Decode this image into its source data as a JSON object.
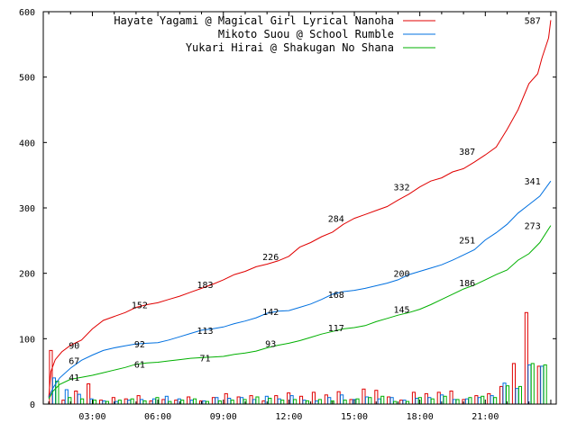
{
  "chart_data": {
    "type": "line",
    "title": "",
    "xlabel": "",
    "ylabel": "",
    "grid": false,
    "legend_position": "top-right",
    "ylim": [
      0,
      600
    ],
    "xlim_hours": [
      0.75,
      24.25
    ],
    "y_ticks": [
      "0",
      "100",
      "200",
      "300",
      "400",
      "500",
      "600"
    ],
    "x_ticks": [
      {
        "hour": 3,
        "label": "03:00"
      },
      {
        "hour": 6,
        "label": "06:00"
      },
      {
        "hour": 9,
        "label": "09:00"
      },
      {
        "hour": 12,
        "label": "12:00"
      },
      {
        "hour": 15,
        "label": "15:00"
      },
      {
        "hour": 18,
        "label": "18:00"
      },
      {
        "hour": 21,
        "label": "21:00"
      }
    ],
    "series": [
      {
        "name": "Hayate Yagami @ Magical Girl Lyrical Nanoha",
        "color": "#e00000",
        "cumulative": [
          [
            1.0,
            10
          ],
          [
            1.1,
            50
          ],
          [
            1.3,
            68
          ],
          [
            1.6,
            80
          ],
          [
            2.0,
            90
          ],
          [
            2.5,
            98
          ],
          [
            3.0,
            115
          ],
          [
            3.5,
            128
          ],
          [
            4.0,
            134
          ],
          [
            4.5,
            140
          ],
          [
            5.0,
            148
          ],
          [
            5.5,
            152
          ],
          [
            6.0,
            155
          ],
          [
            6.5,
            160
          ],
          [
            7.0,
            165
          ],
          [
            7.5,
            171
          ],
          [
            8.0,
            177
          ],
          [
            8.5,
            183
          ],
          [
            9.0,
            190
          ],
          [
            9.5,
            198
          ],
          [
            10.0,
            203
          ],
          [
            10.5,
            210
          ],
          [
            11.0,
            214
          ],
          [
            11.5,
            219
          ],
          [
            12.0,
            226
          ],
          [
            12.5,
            240
          ],
          [
            13.0,
            247
          ],
          [
            13.5,
            256
          ],
          [
            14.0,
            263
          ],
          [
            14.5,
            275
          ],
          [
            15.0,
            284
          ],
          [
            15.5,
            290
          ],
          [
            16.0,
            296
          ],
          [
            16.5,
            302
          ],
          [
            17.0,
            312
          ],
          [
            17.5,
            321
          ],
          [
            18.0,
            332
          ],
          [
            18.5,
            341
          ],
          [
            19.0,
            346
          ],
          [
            19.5,
            355
          ],
          [
            20.0,
            360
          ],
          [
            20.5,
            370
          ],
          [
            21.0,
            381
          ],
          [
            21.5,
            393
          ],
          [
            22.0,
            420
          ],
          [
            22.5,
            450
          ],
          [
            23.0,
            490
          ],
          [
            23.4,
            505
          ],
          [
            23.6,
            530
          ],
          [
            23.9,
            560
          ],
          [
            24.0,
            587
          ]
        ],
        "labels": [
          {
            "hour": 2.0,
            "value": 90,
            "text": "90"
          },
          {
            "hour": 5.0,
            "value": 152,
            "text": "152"
          },
          {
            "hour": 8.0,
            "value": 183,
            "text": "183"
          },
          {
            "hour": 11.0,
            "value": 226,
            "text": "226"
          },
          {
            "hour": 14.0,
            "value": 284,
            "text": "284"
          },
          {
            "hour": 17.0,
            "value": 332,
            "text": "332"
          },
          {
            "hour": 20.0,
            "value": 387,
            "text": "387"
          },
          {
            "hour": 23.0,
            "value": 587,
            "text": "587"
          }
        ],
        "hourly": [
          82,
          6,
          20,
          31,
          6,
          10,
          8,
          13,
          5,
          7,
          6,
          11,
          5,
          10,
          16,
          11,
          13,
          5,
          13,
          17,
          12,
          18,
          14,
          19,
          7,
          23,
          21,
          11,
          6,
          18,
          16,
          18,
          20,
          7,
          13,
          16,
          27,
          62,
          140,
          58
        ]
      },
      {
        "name": "Mikoto Suou @ School Rumble",
        "color": "#0070e0",
        "cumulative": [
          [
            1.0,
            10
          ],
          [
            1.2,
            25
          ],
          [
            1.5,
            40
          ],
          [
            2.0,
            55
          ],
          [
            2.5,
            67
          ],
          [
            3.0,
            75
          ],
          [
            3.5,
            82
          ],
          [
            4.0,
            86
          ],
          [
            4.5,
            89
          ],
          [
            5.0,
            92
          ],
          [
            5.5,
            93
          ],
          [
            6.0,
            94
          ],
          [
            6.5,
            98
          ],
          [
            7.0,
            103
          ],
          [
            7.5,
            108
          ],
          [
            8.0,
            113
          ],
          [
            8.5,
            115
          ],
          [
            9.0,
            118
          ],
          [
            9.5,
            123
          ],
          [
            10.0,
            127
          ],
          [
            10.5,
            132
          ],
          [
            11.0,
            139
          ],
          [
            11.5,
            142
          ],
          [
            12.0,
            143
          ],
          [
            12.5,
            148
          ],
          [
            13.0,
            153
          ],
          [
            13.5,
            160
          ],
          [
            14.0,
            168
          ],
          [
            14.5,
            172
          ],
          [
            15.0,
            174
          ],
          [
            15.5,
            177
          ],
          [
            16.0,
            181
          ],
          [
            16.5,
            185
          ],
          [
            17.0,
            190
          ],
          [
            17.5,
            198
          ],
          [
            18.0,
            203
          ],
          [
            18.5,
            208
          ],
          [
            19.0,
            213
          ],
          [
            19.5,
            220
          ],
          [
            20.0,
            228
          ],
          [
            20.5,
            236
          ],
          [
            21.0,
            251
          ],
          [
            21.5,
            262
          ],
          [
            22.0,
            275
          ],
          [
            22.5,
            292
          ],
          [
            23.0,
            305
          ],
          [
            23.5,
            318
          ],
          [
            24.0,
            341
          ]
        ],
        "labels": [
          {
            "hour": 2.0,
            "value": 67,
            "text": "67"
          },
          {
            "hour": 5.0,
            "value": 92,
            "text": "92"
          },
          {
            "hour": 8.0,
            "value": 113,
            "text": "113"
          },
          {
            "hour": 11.0,
            "value": 142,
            "text": "142"
          },
          {
            "hour": 14.0,
            "value": 168,
            "text": "168"
          },
          {
            "hour": 17.0,
            "value": 200,
            "text": "200"
          },
          {
            "hour": 20.0,
            "value": 251,
            "text": "251"
          },
          {
            "hour": 23.0,
            "value": 341,
            "text": "341"
          }
        ],
        "hourly": [
          40,
          22,
          15,
          8,
          5,
          4,
          6,
          7,
          8,
          12,
          8,
          6,
          5,
          10,
          9,
          10,
          7,
          12,
          8,
          13,
          6,
          5,
          10,
          14,
          7,
          11,
          8,
          10,
          6,
          9,
          10,
          14,
          7,
          8,
          10,
          13,
          32,
          24,
          60,
          58
        ]
      },
      {
        "name": "Yukari Hirai @ Shakugan No Shana",
        "color": "#00b000",
        "cumulative": [
          [
            1.0,
            8
          ],
          [
            1.2,
            20
          ],
          [
            1.5,
            30
          ],
          [
            2.0,
            38
          ],
          [
            2.5,
            41
          ],
          [
            3.0,
            44
          ],
          [
            3.5,
            48
          ],
          [
            4.0,
            52
          ],
          [
            4.5,
            56
          ],
          [
            5.0,
            61
          ],
          [
            5.5,
            63
          ],
          [
            6.0,
            64
          ],
          [
            6.5,
            66
          ],
          [
            7.0,
            68
          ],
          [
            7.5,
            70
          ],
          [
            8.0,
            71
          ],
          [
            8.5,
            72
          ],
          [
            9.0,
            73
          ],
          [
            9.5,
            76
          ],
          [
            10.0,
            78
          ],
          [
            10.5,
            81
          ],
          [
            11.0,
            86
          ],
          [
            11.5,
            90
          ],
          [
            12.0,
            93
          ],
          [
            12.5,
            97
          ],
          [
            13.0,
            102
          ],
          [
            13.5,
            107
          ],
          [
            14.0,
            111
          ],
          [
            14.5,
            115
          ],
          [
            15.0,
            117
          ],
          [
            15.5,
            120
          ],
          [
            16.0,
            126
          ],
          [
            16.5,
            131
          ],
          [
            17.0,
            136
          ],
          [
            17.5,
            140
          ],
          [
            18.0,
            145
          ],
          [
            18.5,
            152
          ],
          [
            19.0,
            160
          ],
          [
            19.5,
            168
          ],
          [
            20.0,
            176
          ],
          [
            20.5,
            182
          ],
          [
            21.0,
            190
          ],
          [
            21.5,
            198
          ],
          [
            22.0,
            205
          ],
          [
            22.5,
            220
          ],
          [
            23.0,
            230
          ],
          [
            23.5,
            247
          ],
          [
            24.0,
            273
          ]
        ],
        "labels": [
          {
            "hour": 2.0,
            "value": 41,
            "text": "41"
          },
          {
            "hour": 5.0,
            "value": 61,
            "text": "61"
          },
          {
            "hour": 8.0,
            "value": 71,
            "text": "71"
          },
          {
            "hour": 11.0,
            "value": 93,
            "text": "93"
          },
          {
            "hour": 14.0,
            "value": 117,
            "text": "117"
          },
          {
            "hour": 17.0,
            "value": 145,
            "text": "145"
          },
          {
            "hour": 20.0,
            "value": 186,
            "text": "186"
          },
          {
            "hour": 23.0,
            "value": 273,
            "text": "273"
          }
        ],
        "hourly": [
          35,
          10,
          8,
          6,
          4,
          6,
          8,
          5,
          10,
          4,
          6,
          8,
          4,
          5,
          6,
          7,
          11,
          9,
          6,
          7,
          5,
          7,
          5,
          6,
          8,
          10,
          12,
          4,
          4,
          10,
          8,
          12,
          7,
          10,
          12,
          10,
          28,
          27,
          62,
          60
        ]
      }
    ]
  }
}
